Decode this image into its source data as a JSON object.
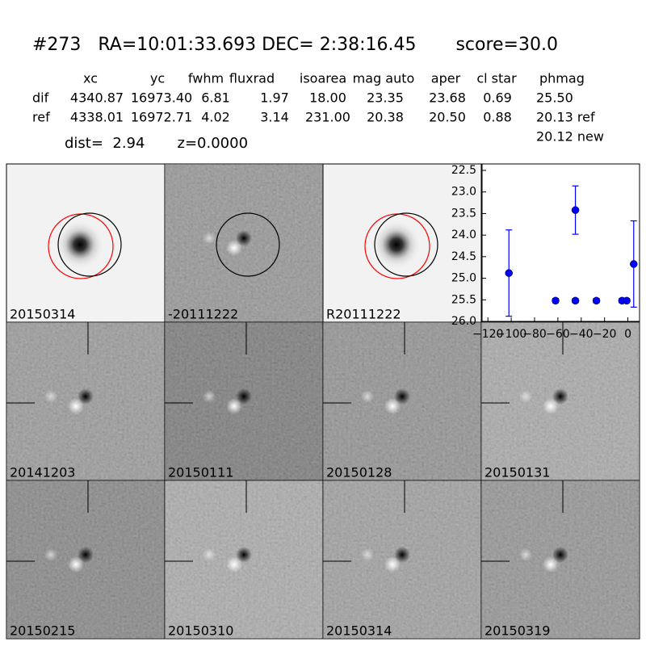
{
  "header": {
    "title": "#273   RA=10:01:33.693 DEC= 2:38:16.45       score=30.0"
  },
  "table": {
    "columns": [
      "xc",
      "yc",
      "fwhm",
      "fluxrad",
      "isoarea",
      "mag auto",
      "aper",
      "cl star",
      "phmag"
    ],
    "rows": [
      [
        "dif",
        "4340.87",
        "16973.40",
        "6.81",
        "1.97",
        "18.00",
        "23.35",
        "23.68",
        "0.69",
        "25.50"
      ],
      [
        "ref",
        "4338.01",
        "16972.71",
        "4.02",
        "3.14",
        "231.00",
        "20.38",
        "20.50",
        "0.88",
        "20.13 ref"
      ]
    ],
    "extra": "20.12 new"
  },
  "summary": "dist=  2.94       z=0.0000",
  "stamps": [
    {
      "label": "20150314",
      "color": "#000000"
    },
    {
      "label": "-20111222",
      "color": "#000000"
    },
    {
      "label": "R20111222",
      "color": "#000000"
    },
    {
      "label": "20141203",
      "color": "#000000"
    },
    {
      "label": "20150111",
      "color": "#000000"
    },
    {
      "label": "20150128",
      "color": "#000000"
    },
    {
      "label": "20150131",
      "color": "#000000"
    },
    {
      "label": "20150215",
      "color": "#000000"
    },
    {
      "label": "20150310",
      "color": "#000000"
    },
    {
      "label": "20150314",
      "color": "#ff0000"
    },
    {
      "label": "20150319",
      "color": "#000000"
    }
  ],
  "chart_data": {
    "type": "errorbar",
    "color": "#0000ff",
    "x": [
      -102,
      -62,
      -45,
      -45,
      -27,
      -5,
      -1,
      5
    ],
    "values": [
      24.88,
      25.52,
      25.52,
      23.42,
      25.52,
      25.52,
      25.52,
      24.67
    ],
    "errors": [
      1.0,
      0.05,
      0.05,
      0.56,
      0.05,
      0.05,
      0.05,
      1.0
    ],
    "xlim": [
      -125,
      10
    ],
    "ylim": [
      26.0,
      22.5
    ],
    "inverted_y": true,
    "xticks": [
      {
        "value": -120,
        "label": "−120"
      },
      {
        "value": -100,
        "label": "−100"
      },
      {
        "value": -80,
        "label": "−80"
      },
      {
        "value": -60,
        "label": "−60"
      },
      {
        "value": -40,
        "label": "−40"
      },
      {
        "value": -20,
        "label": "−20"
      },
      0
    ],
    "yticks": [
      {
        "value": 22.5,
        "label": "22.5"
      },
      {
        "value": 23.0,
        "label": "23.0"
      },
      {
        "value": 23.5,
        "label": "23.5"
      },
      {
        "value": 24.0,
        "label": "24.0"
      },
      {
        "value": 24.5,
        "label": "24.5"
      },
      {
        "value": 25.0,
        "label": "25.0"
      },
      {
        "value": 25.5,
        "label": "25.5"
      },
      {
        "value": 26.0,
        "label": "26.0"
      }
    ]
  }
}
